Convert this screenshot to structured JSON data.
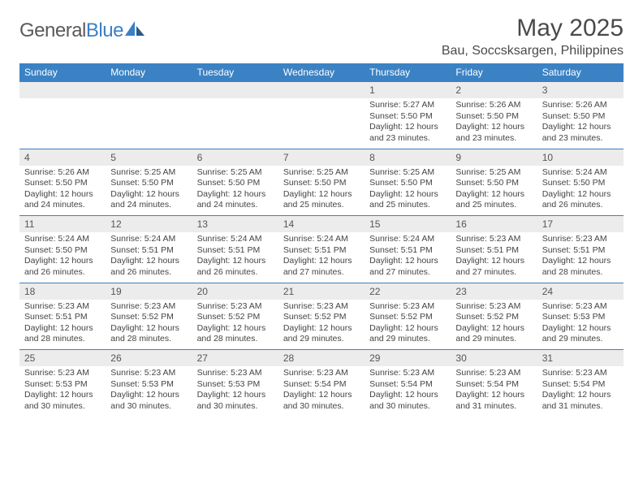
{
  "logo": {
    "text1": "General",
    "text2": "Blue"
  },
  "title": "May 2025",
  "location": "Bau, Soccsksargen, Philippines",
  "colors": {
    "header_bg": "#3b82c4",
    "header_text": "#ffffff",
    "daynum_bg": "#ececec",
    "border": "#3b7fc4",
    "logo_gray": "#5a5a5a",
    "logo_blue": "#3b7fc4"
  },
  "day_headers": [
    "Sunday",
    "Monday",
    "Tuesday",
    "Wednesday",
    "Thursday",
    "Friday",
    "Saturday"
  ],
  "weeks": [
    [
      null,
      null,
      null,
      null,
      {
        "n": "1",
        "sr": "5:27 AM",
        "ss": "5:50 PM",
        "dl": "12 hours and 23 minutes."
      },
      {
        "n": "2",
        "sr": "5:26 AM",
        "ss": "5:50 PM",
        "dl": "12 hours and 23 minutes."
      },
      {
        "n": "3",
        "sr": "5:26 AM",
        "ss": "5:50 PM",
        "dl": "12 hours and 23 minutes."
      }
    ],
    [
      {
        "n": "4",
        "sr": "5:26 AM",
        "ss": "5:50 PM",
        "dl": "12 hours and 24 minutes."
      },
      {
        "n": "5",
        "sr": "5:25 AM",
        "ss": "5:50 PM",
        "dl": "12 hours and 24 minutes."
      },
      {
        "n": "6",
        "sr": "5:25 AM",
        "ss": "5:50 PM",
        "dl": "12 hours and 24 minutes."
      },
      {
        "n": "7",
        "sr": "5:25 AM",
        "ss": "5:50 PM",
        "dl": "12 hours and 25 minutes."
      },
      {
        "n": "8",
        "sr": "5:25 AM",
        "ss": "5:50 PM",
        "dl": "12 hours and 25 minutes."
      },
      {
        "n": "9",
        "sr": "5:25 AM",
        "ss": "5:50 PM",
        "dl": "12 hours and 25 minutes."
      },
      {
        "n": "10",
        "sr": "5:24 AM",
        "ss": "5:50 PM",
        "dl": "12 hours and 26 minutes."
      }
    ],
    [
      {
        "n": "11",
        "sr": "5:24 AM",
        "ss": "5:50 PM",
        "dl": "12 hours and 26 minutes."
      },
      {
        "n": "12",
        "sr": "5:24 AM",
        "ss": "5:51 PM",
        "dl": "12 hours and 26 minutes."
      },
      {
        "n": "13",
        "sr": "5:24 AM",
        "ss": "5:51 PM",
        "dl": "12 hours and 26 minutes."
      },
      {
        "n": "14",
        "sr": "5:24 AM",
        "ss": "5:51 PM",
        "dl": "12 hours and 27 minutes."
      },
      {
        "n": "15",
        "sr": "5:24 AM",
        "ss": "5:51 PM",
        "dl": "12 hours and 27 minutes."
      },
      {
        "n": "16",
        "sr": "5:23 AM",
        "ss": "5:51 PM",
        "dl": "12 hours and 27 minutes."
      },
      {
        "n": "17",
        "sr": "5:23 AM",
        "ss": "5:51 PM",
        "dl": "12 hours and 28 minutes."
      }
    ],
    [
      {
        "n": "18",
        "sr": "5:23 AM",
        "ss": "5:51 PM",
        "dl": "12 hours and 28 minutes."
      },
      {
        "n": "19",
        "sr": "5:23 AM",
        "ss": "5:52 PM",
        "dl": "12 hours and 28 minutes."
      },
      {
        "n": "20",
        "sr": "5:23 AM",
        "ss": "5:52 PM",
        "dl": "12 hours and 28 minutes."
      },
      {
        "n": "21",
        "sr": "5:23 AM",
        "ss": "5:52 PM",
        "dl": "12 hours and 29 minutes."
      },
      {
        "n": "22",
        "sr": "5:23 AM",
        "ss": "5:52 PM",
        "dl": "12 hours and 29 minutes."
      },
      {
        "n": "23",
        "sr": "5:23 AM",
        "ss": "5:52 PM",
        "dl": "12 hours and 29 minutes."
      },
      {
        "n": "24",
        "sr": "5:23 AM",
        "ss": "5:53 PM",
        "dl": "12 hours and 29 minutes."
      }
    ],
    [
      {
        "n": "25",
        "sr": "5:23 AM",
        "ss": "5:53 PM",
        "dl": "12 hours and 30 minutes."
      },
      {
        "n": "26",
        "sr": "5:23 AM",
        "ss": "5:53 PM",
        "dl": "12 hours and 30 minutes."
      },
      {
        "n": "27",
        "sr": "5:23 AM",
        "ss": "5:53 PM",
        "dl": "12 hours and 30 minutes."
      },
      {
        "n": "28",
        "sr": "5:23 AM",
        "ss": "5:54 PM",
        "dl": "12 hours and 30 minutes."
      },
      {
        "n": "29",
        "sr": "5:23 AM",
        "ss": "5:54 PM",
        "dl": "12 hours and 30 minutes."
      },
      {
        "n": "30",
        "sr": "5:23 AM",
        "ss": "5:54 PM",
        "dl": "12 hours and 31 minutes."
      },
      {
        "n": "31",
        "sr": "5:23 AM",
        "ss": "5:54 PM",
        "dl": "12 hours and 31 minutes."
      }
    ]
  ],
  "labels": {
    "sunrise": "Sunrise: ",
    "sunset": "Sunset: ",
    "daylight": "Daylight: "
  }
}
